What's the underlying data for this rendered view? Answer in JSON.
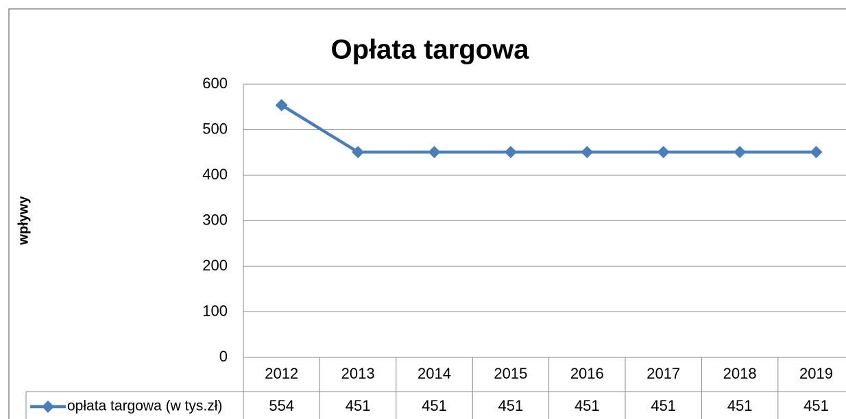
{
  "chart_data": {
    "type": "line",
    "title": "Opłata targowa",
    "y_label": "wpływy",
    "categories": [
      "2012",
      "2013",
      "2014",
      "2015",
      "2016",
      "2017",
      "2018",
      "2019"
    ],
    "series": [
      {
        "name": "opłata targowa (w tys.zł)",
        "color": "#4a7ebb",
        "values": [
          554,
          451,
          451,
          451,
          451,
          451,
          451,
          451
        ]
      }
    ],
    "ylim": [
      0,
      600
    ],
    "yticks": [
      0,
      100,
      200,
      300,
      400,
      500,
      600
    ],
    "grid": true
  }
}
